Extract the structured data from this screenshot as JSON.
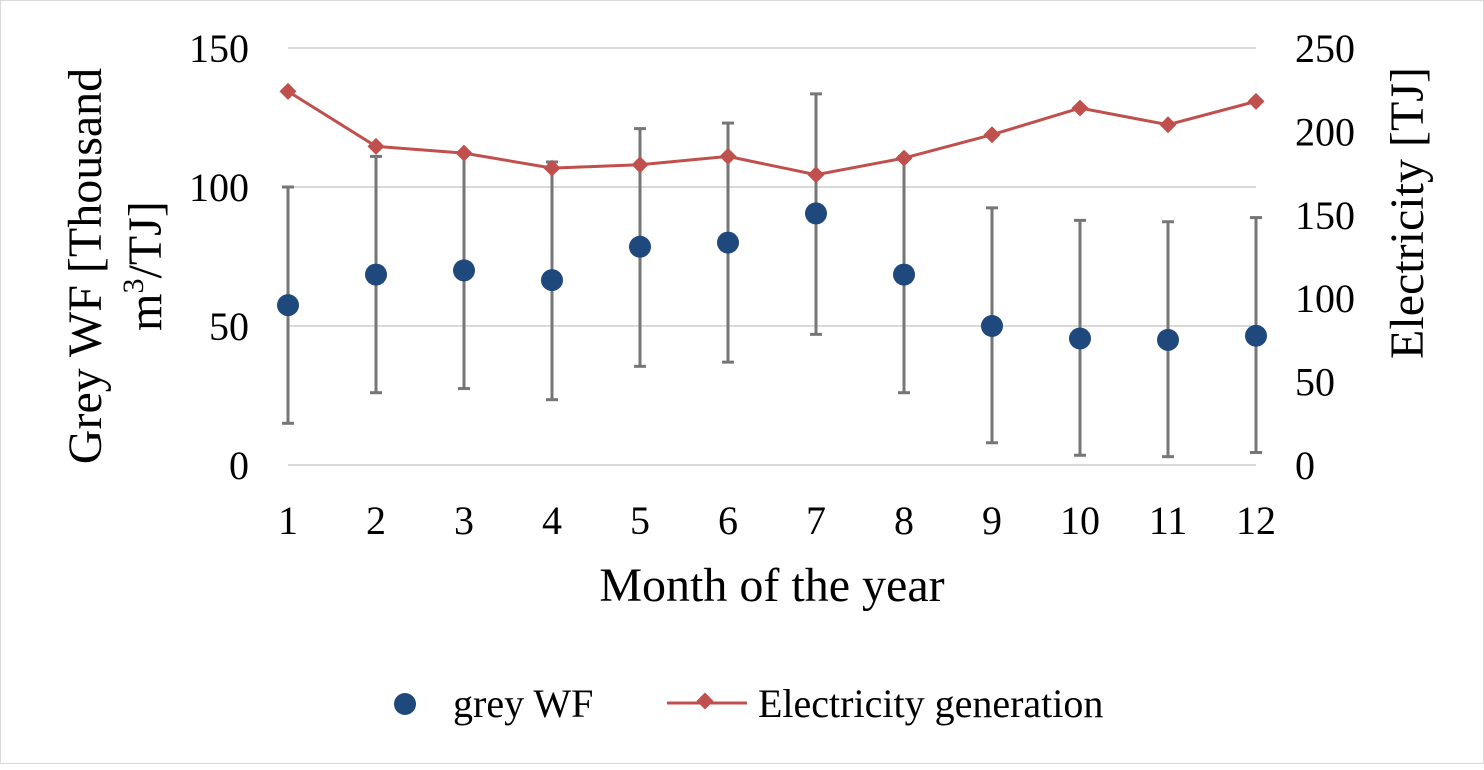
{
  "chart_data": {
    "type": "scatter",
    "x": [
      1,
      2,
      3,
      4,
      5,
      6,
      7,
      8,
      9,
      10,
      11,
      12
    ],
    "xlabel": "Month of the year",
    "ylabel_left": "Grey WF [Thousand m3/TJ]",
    "ylabel_left_lines": [
      "Grey WF [Thousand",
      "m",
      "3",
      "/TJ]"
    ],
    "ylabel_right": "Electricity [TJ]",
    "ylim_left": [
      0,
      150
    ],
    "ylim_right": [
      0,
      250
    ],
    "yticks_left": [
      0,
      50,
      100,
      150
    ],
    "yticks_right": [
      0,
      50,
      100,
      150,
      200,
      250
    ],
    "grid": true,
    "legend_position": "bottom",
    "series": [
      {
        "name": "grey WF",
        "type": "scatter",
        "axis": "left",
        "color": "#1f497d",
        "values": [
          57.5,
          68.5,
          70,
          66.5,
          78.5,
          80,
          90.5,
          68.5,
          50,
          45.5,
          45,
          46.5
        ],
        "error_low": [
          15,
          26,
          27.5,
          23.5,
          35.5,
          37,
          47,
          26,
          8,
          3.5,
          3,
          4.5
        ],
        "error_high": [
          100,
          111,
          112,
          109,
          121,
          123,
          133.5,
          111,
          92.5,
          88,
          87.5,
          89
        ]
      },
      {
        "name": "Electricity generation",
        "type": "line",
        "axis": "right",
        "color": "#c0504d",
        "values": [
          224,
          191,
          187,
          178,
          180,
          185,
          174,
          184,
          198,
          214,
          204,
          218
        ]
      }
    ]
  }
}
